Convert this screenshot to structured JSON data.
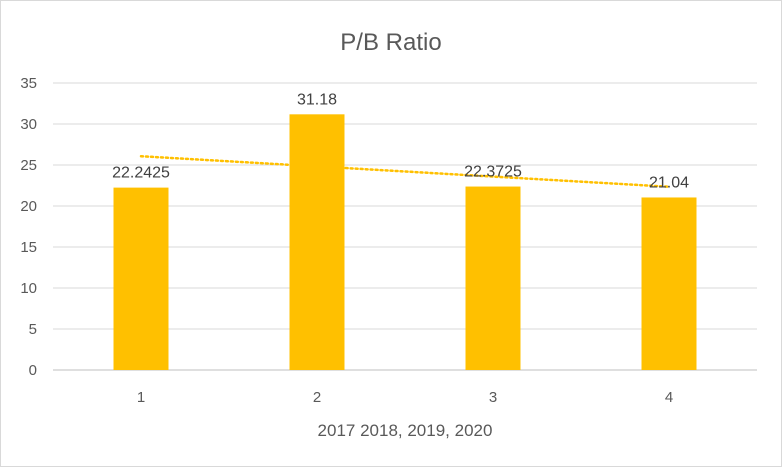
{
  "chart_data": {
    "type": "bar",
    "title": "P/B Ratio",
    "xlabel": "2017 2018, 2019, 2020",
    "ylabel": "",
    "categories": [
      "1",
      "2",
      "3",
      "4"
    ],
    "values": [
      22.2425,
      31.18,
      22.3725,
      21.04
    ],
    "data_labels": [
      "22.2425",
      "31.18",
      "22.3725",
      "21.04"
    ],
    "ylim": [
      0,
      35
    ],
    "yticks": [
      0,
      5,
      10,
      15,
      20,
      25,
      30,
      35
    ],
    "trendline": {
      "type": "linear",
      "style": "dotted"
    },
    "grid": true,
    "legend": "none",
    "colors": {
      "bar": "#FFC000",
      "trendline": "#FFC000",
      "grid": "#d9d9d9",
      "axis": "#bfbfbf"
    }
  }
}
